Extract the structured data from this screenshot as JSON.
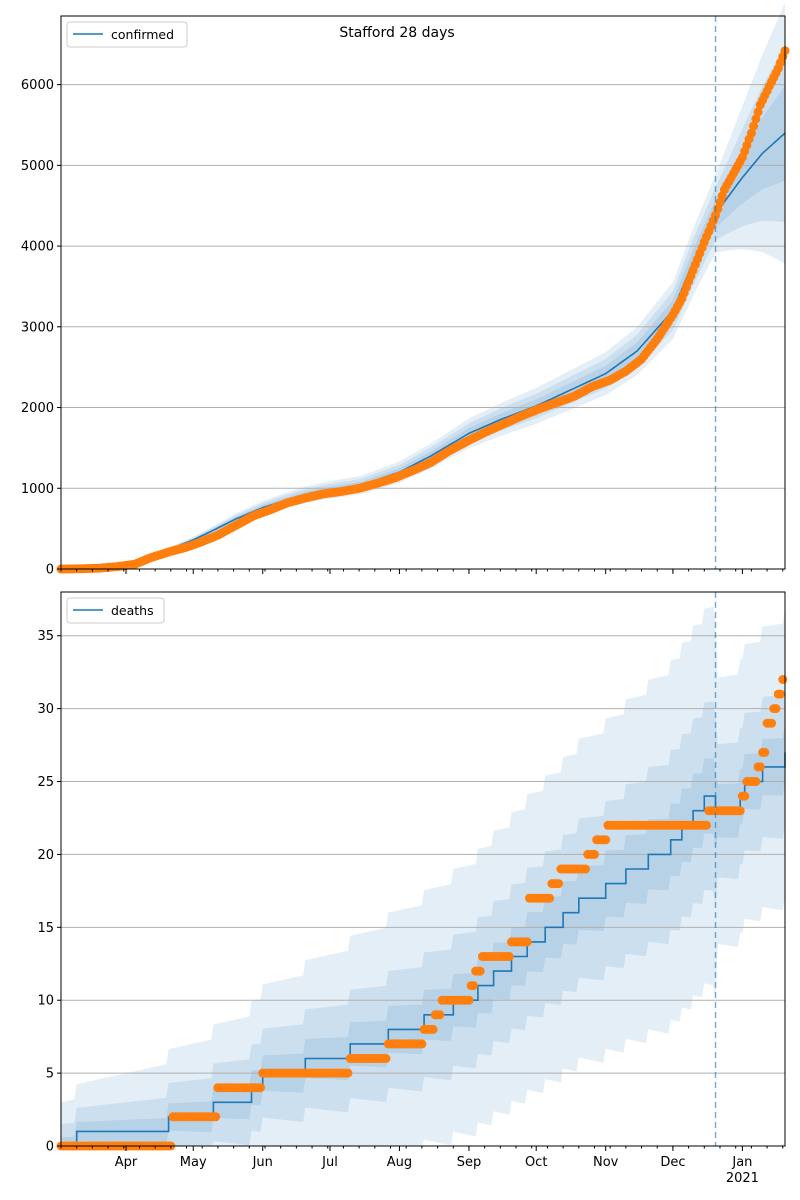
{
  "colors": {
    "model": "#1f77b4",
    "observed": "#ff7f0e",
    "band": "#1f77b4",
    "grid": "#b0b0b0",
    "divider": "#1f77b4"
  },
  "x_axis": {
    "month_labels": [
      "Apr",
      "May",
      "Jun",
      "Jul",
      "Aug",
      "Sep",
      "Oct",
      "Nov",
      "Dec",
      "Jan"
    ],
    "year_label": "2021"
  },
  "chart_data": [
    {
      "type": "line",
      "title": "Stafford 28 days",
      "xlabel": "",
      "ylabel": "",
      "legend": [
        "confirmed"
      ],
      "legend_position": "top-left",
      "grid": "horizontal",
      "x_range": [
        "2020-03-03",
        "2021-01-20"
      ],
      "ylim": [
        0,
        6850
      ],
      "yticks": [
        "0",
        "1000",
        "2000",
        "3000",
        "4000",
        "5000",
        "6000"
      ],
      "forecast_start": "2020-12-20",
      "series": [
        {
          "name": "confirmed",
          "style": "model-line-with-uncertainty-bands",
          "points": [
            [
              "2020-03-03",
              0
            ],
            [
              "2020-03-15",
              5
            ],
            [
              "2020-03-25",
              20
            ],
            [
              "2020-04-01",
              60
            ],
            [
              "2020-04-10",
              150
            ],
            [
              "2020-04-20",
              240
            ],
            [
              "2020-05-01",
              360
            ],
            [
              "2020-05-10",
              480
            ],
            [
              "2020-05-20",
              620
            ],
            [
              "2020-06-01",
              760
            ],
            [
              "2020-06-10",
              840
            ],
            [
              "2020-06-20",
              920
            ],
            [
              "2020-07-01",
              980
            ],
            [
              "2020-07-15",
              1040
            ],
            [
              "2020-08-01",
              1200
            ],
            [
              "2020-08-15",
              1400
            ],
            [
              "2020-09-01",
              1680
            ],
            [
              "2020-09-15",
              1850
            ],
            [
              "2020-10-01",
              2020
            ],
            [
              "2020-10-15",
              2200
            ],
            [
              "2020-11-01",
              2420
            ],
            [
              "2020-11-15",
              2700
            ],
            [
              "2020-12-01",
              3200
            ],
            [
              "2020-12-10",
              3800
            ],
            [
              "2020-12-20",
              4400
            ],
            [
              "2021-01-01",
              4850
            ],
            [
              "2021-01-10",
              5150
            ],
            [
              "2021-01-20",
              5400
            ]
          ]
        },
        {
          "name": "observed",
          "style": "points",
          "points": [
            [
              "2020-03-03",
              0
            ],
            [
              "2020-03-10",
              2
            ],
            [
              "2020-03-20",
              10
            ],
            [
              "2020-03-28",
              30
            ],
            [
              "2020-04-05",
              60
            ],
            [
              "2020-04-12",
              140
            ],
            [
              "2020-04-20",
              210
            ],
            [
              "2020-04-28",
              270
            ],
            [
              "2020-05-05",
              340
            ],
            [
              "2020-05-12",
              420
            ],
            [
              "2020-05-20",
              540
            ],
            [
              "2020-05-28",
              660
            ],
            [
              "2020-06-05",
              740
            ],
            [
              "2020-06-12",
              820
            ],
            [
              "2020-06-20",
              880
            ],
            [
              "2020-06-28",
              930
            ],
            [
              "2020-07-06",
              960
            ],
            [
              "2020-07-14",
              1000
            ],
            [
              "2020-07-22",
              1060
            ],
            [
              "2020-07-30",
              1130
            ],
            [
              "2020-08-07",
              1220
            ],
            [
              "2020-08-15",
              1320
            ],
            [
              "2020-08-23",
              1460
            ],
            [
              "2020-08-31",
              1580
            ],
            [
              "2020-09-08",
              1690
            ],
            [
              "2020-09-16",
              1790
            ],
            [
              "2020-09-24",
              1890
            ],
            [
              "2020-10-02",
              1980
            ],
            [
              "2020-10-10",
              2060
            ],
            [
              "2020-10-18",
              2140
            ],
            [
              "2020-10-26",
              2260
            ],
            [
              "2020-11-03",
              2340
            ],
            [
              "2020-11-10",
              2450
            ],
            [
              "2020-11-17",
              2600
            ],
            [
              "2020-11-24",
              2850
            ],
            [
              "2020-12-01",
              3150
            ],
            [
              "2020-12-05",
              3350
            ],
            [
              "2020-12-10",
              3700
            ],
            [
              "2020-12-15",
              4050
            ],
            [
              "2020-12-20",
              4380
            ],
            [
              "2020-12-24",
              4700
            ],
            [
              "2020-12-28",
              4900
            ],
            [
              "2021-01-01",
              5100
            ],
            [
              "2021-01-05",
              5400
            ],
            [
              "2021-01-09",
              5750
            ],
            [
              "2021-01-13",
              5980
            ],
            [
              "2021-01-17",
              6200
            ],
            [
              "2021-01-20",
              6420
            ]
          ]
        }
      ]
    },
    {
      "type": "line",
      "title": "",
      "xlabel": "",
      "ylabel": "",
      "legend": [
        "deaths"
      ],
      "legend_position": "top-left",
      "grid": "horizontal",
      "x_range": [
        "2020-03-03",
        "2021-01-20"
      ],
      "ylim": [
        0,
        38
      ],
      "yticks": [
        "0",
        "5",
        "10",
        "15",
        "20",
        "25",
        "30",
        "35"
      ],
      "forecast_start": "2020-12-20",
      "series": [
        {
          "name": "deaths",
          "style": "model-step-with-uncertainty-bands",
          "points": [
            [
              "2020-03-03",
              0
            ],
            [
              "2020-03-10",
              1
            ],
            [
              "2020-04-20",
              2
            ],
            [
              "2020-05-10",
              3
            ],
            [
              "2020-05-27",
              4
            ],
            [
              "2020-06-01",
              5
            ],
            [
              "2020-06-20",
              6
            ],
            [
              "2020-07-10",
              7
            ],
            [
              "2020-07-27",
              8
            ],
            [
              "2020-08-12",
              9
            ],
            [
              "2020-08-25",
              10
            ],
            [
              "2020-09-05",
              11
            ],
            [
              "2020-09-12",
              12
            ],
            [
              "2020-09-20",
              13
            ],
            [
              "2020-09-27",
              14
            ],
            [
              "2020-10-05",
              15
            ],
            [
              "2020-10-13",
              16
            ],
            [
              "2020-10-20",
              17
            ],
            [
              "2020-11-01",
              18
            ],
            [
              "2020-11-10",
              19
            ],
            [
              "2020-11-20",
              20
            ],
            [
              "2020-11-30",
              21
            ],
            [
              "2020-12-05",
              22
            ],
            [
              "2020-12-10",
              23
            ],
            [
              "2020-12-15",
              24
            ],
            [
              "2020-12-20",
              23
            ],
            [
              "2020-12-31",
              24
            ],
            [
              "2021-01-02",
              25
            ],
            [
              "2021-01-10",
              26
            ],
            [
              "2021-01-20",
              27
            ]
          ]
        },
        {
          "name": "observed",
          "style": "points",
          "points": [
            [
              "2020-03-03",
              0
            ],
            [
              "2020-04-10",
              0
            ],
            [
              "2020-04-22",
              2
            ],
            [
              "2020-05-10",
              2
            ],
            [
              "2020-05-12",
              4
            ],
            [
              "2020-05-30",
              4
            ],
            [
              "2020-06-01",
              5
            ],
            [
              "2020-07-05",
              5
            ],
            [
              "2020-07-10",
              6
            ],
            [
              "2020-07-25",
              6
            ],
            [
              "2020-07-27",
              7
            ],
            [
              "2020-08-10",
              7
            ],
            [
              "2020-08-12",
              8
            ],
            [
              "2020-08-17",
              9
            ],
            [
              "2020-08-20",
              10
            ],
            [
              "2020-09-01",
              10
            ],
            [
              "2020-09-02",
              11
            ],
            [
              "2020-09-04",
              12
            ],
            [
              "2020-09-07",
              13
            ],
            [
              "2020-09-15",
              13
            ],
            [
              "2020-09-20",
              14
            ],
            [
              "2020-09-25",
              14
            ],
            [
              "2020-09-28",
              17
            ],
            [
              "2020-10-05",
              17
            ],
            [
              "2020-10-08",
              18
            ],
            [
              "2020-10-12",
              19
            ],
            [
              "2020-10-20",
              19
            ],
            [
              "2020-10-24",
              20
            ],
            [
              "2020-10-28",
              21
            ],
            [
              "2020-11-02",
              22
            ],
            [
              "2020-11-25",
              22
            ],
            [
              "2020-12-14",
              22
            ],
            [
              "2020-12-17",
              23
            ],
            [
              "2020-12-30",
              23
            ],
            [
              "2021-01-01",
              24
            ],
            [
              "2021-01-03",
              25
            ],
            [
              "2021-01-06",
              25
            ],
            [
              "2021-01-08",
              26
            ],
            [
              "2021-01-10",
              27
            ],
            [
              "2021-01-12",
              29
            ],
            [
              "2021-01-15",
              30
            ],
            [
              "2021-01-17",
              31
            ],
            [
              "2021-01-19",
              32
            ]
          ]
        }
      ]
    }
  ]
}
